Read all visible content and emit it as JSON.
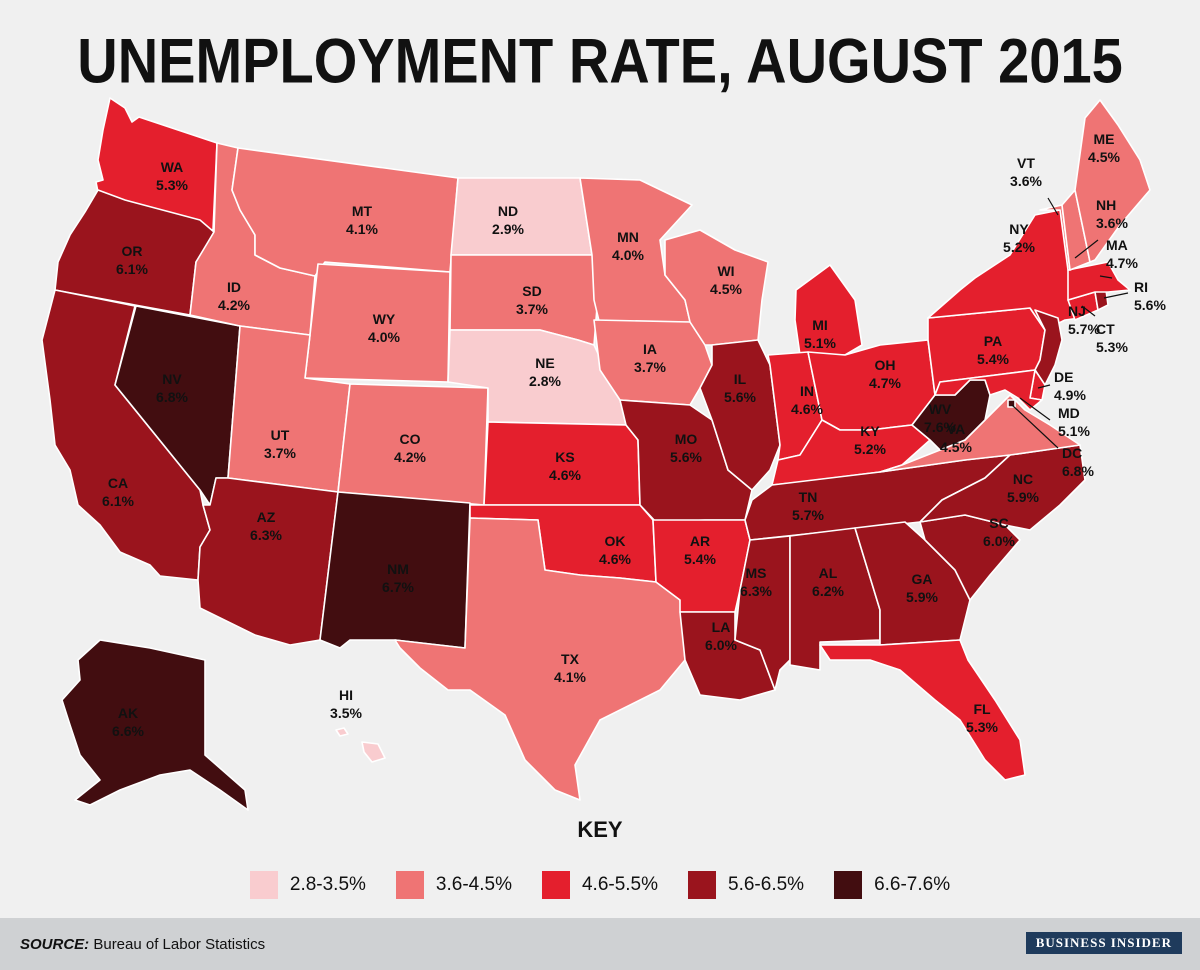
{
  "title": "UNEMPLOYMENT RATE, AUGUST 2015",
  "key_title": "KEY",
  "legend": [
    {
      "label": "2.8-3.5%",
      "color": "#f9cccf"
    },
    {
      "label": "3.6-4.5%",
      "color": "#ef7474"
    },
    {
      "label": "4.6-5.5%",
      "color": "#e41f2d"
    },
    {
      "label": "5.6-6.5%",
      "color": "#9a141d"
    },
    {
      "label": "6.6-7.6%",
      "color": "#420d10"
    }
  ],
  "source_label": "SOURCE:",
  "source_text": "Bureau of Labor Statistics",
  "logo": "BUSINESS INSIDER",
  "states": {
    "WA": {
      "code": "WA",
      "rate": "5.3%",
      "bucket": 2
    },
    "OR": {
      "code": "OR",
      "rate": "6.1%",
      "bucket": 3
    },
    "CA": {
      "code": "CA",
      "rate": "6.1%",
      "bucket": 3
    },
    "NV": {
      "code": "NV",
      "rate": "6.8%",
      "bucket": 4
    },
    "ID": {
      "code": "ID",
      "rate": "4.2%",
      "bucket": 1
    },
    "MT": {
      "code": "MT",
      "rate": "4.1%",
      "bucket": 1
    },
    "WY": {
      "code": "WY",
      "rate": "4.0%",
      "bucket": 1
    },
    "UT": {
      "code": "UT",
      "rate": "3.7%",
      "bucket": 1
    },
    "AZ": {
      "code": "AZ",
      "rate": "6.3%",
      "bucket": 3
    },
    "CO": {
      "code": "CO",
      "rate": "4.2%",
      "bucket": 1
    },
    "NM": {
      "code": "NM",
      "rate": "6.7%",
      "bucket": 4
    },
    "ND": {
      "code": "ND",
      "rate": "2.9%",
      "bucket": 0
    },
    "SD": {
      "code": "SD",
      "rate": "3.7%",
      "bucket": 1
    },
    "NE": {
      "code": "NE",
      "rate": "2.8%",
      "bucket": 0
    },
    "KS": {
      "code": "KS",
      "rate": "4.6%",
      "bucket": 2
    },
    "OK": {
      "code": "OK",
      "rate": "4.6%",
      "bucket": 2
    },
    "TX": {
      "code": "TX",
      "rate": "4.1%",
      "bucket": 1
    },
    "MN": {
      "code": "MN",
      "rate": "4.0%",
      "bucket": 1
    },
    "IA": {
      "code": "IA",
      "rate": "3.7%",
      "bucket": 1
    },
    "MO": {
      "code": "MO",
      "rate": "5.6%",
      "bucket": 3
    },
    "AR": {
      "code": "AR",
      "rate": "5.4%",
      "bucket": 2
    },
    "LA": {
      "code": "LA",
      "rate": "6.0%",
      "bucket": 3
    },
    "WI": {
      "code": "WI",
      "rate": "4.5%",
      "bucket": 1
    },
    "IL": {
      "code": "IL",
      "rate": "5.6%",
      "bucket": 3
    },
    "MI": {
      "code": "MI",
      "rate": "5.1%",
      "bucket": 2
    },
    "IN": {
      "code": "IN",
      "rate": "4.6%",
      "bucket": 2
    },
    "OH": {
      "code": "OH",
      "rate": "4.7%",
      "bucket": 2
    },
    "KY": {
      "code": "KY",
      "rate": "5.2%",
      "bucket": 2
    },
    "TN": {
      "code": "TN",
      "rate": "5.7%",
      "bucket": 3
    },
    "MS": {
      "code": "MS",
      "rate": "6.3%",
      "bucket": 3
    },
    "AL": {
      "code": "AL",
      "rate": "6.2%",
      "bucket": 3
    },
    "GA": {
      "code": "GA",
      "rate": "5.9%",
      "bucket": 3
    },
    "FL": {
      "code": "FL",
      "rate": "5.3%",
      "bucket": 2
    },
    "SC": {
      "code": "SC",
      "rate": "6.0%",
      "bucket": 3
    },
    "NC": {
      "code": "NC",
      "rate": "5.9%",
      "bucket": 3
    },
    "VA": {
      "code": "VA",
      "rate": "4.5%",
      "bucket": 1
    },
    "WV": {
      "code": "WV",
      "rate": "7.6%",
      "bucket": 4
    },
    "PA": {
      "code": "PA",
      "rate": "5.4%",
      "bucket": 2
    },
    "NY": {
      "code": "NY",
      "rate": "5.2%",
      "bucket": 2
    },
    "NJ": {
      "code": "NJ",
      "rate": "5.7%",
      "bucket": 3
    },
    "DE": {
      "code": "DE",
      "rate": "4.9%",
      "bucket": 2
    },
    "MD": {
      "code": "MD",
      "rate": "5.1%",
      "bucket": 2
    },
    "DC": {
      "code": "DC",
      "rate": "6.8%",
      "bucket": 4
    },
    "CT": {
      "code": "CT",
      "rate": "5.3%",
      "bucket": 2
    },
    "RI": {
      "code": "RI",
      "rate": "5.6%",
      "bucket": 3
    },
    "MA": {
      "code": "MA",
      "rate": "4.7%",
      "bucket": 2
    },
    "VT": {
      "code": "VT",
      "rate": "3.6%",
      "bucket": 1
    },
    "NH": {
      "code": "NH",
      "rate": "3.6%",
      "bucket": 1
    },
    "ME": {
      "code": "ME",
      "rate": "4.5%",
      "bucket": 1
    },
    "AK": {
      "code": "AK",
      "rate": "6.6%",
      "bucket": 4
    },
    "HI": {
      "code": "HI",
      "rate": "3.5%",
      "bucket": 0
    }
  }
}
